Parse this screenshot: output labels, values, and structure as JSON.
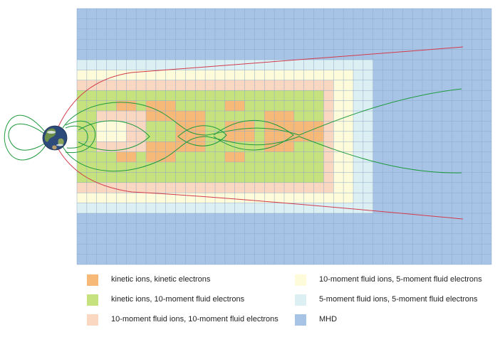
{
  "diagram": {
    "grid_cols": 42,
    "grid_rows": 25,
    "zones": {
      "kinetic": "#f7b978",
      "kinetic_10m": "#c6e27e",
      "ten_ten": "#fad7c0",
      "ten_five": "#fdfbd9",
      "five_five": "#dcf0f4",
      "mhd": "#a7c4e6"
    },
    "line_colors": {
      "magnetopause": "#d23b4b",
      "field_lines": "#1f9a3e"
    }
  },
  "legend": [
    {
      "key": "kinetic",
      "label": "kinetic ions, kinetic electrons",
      "color": "#f7b978"
    },
    {
      "key": "kinetic_10m",
      "label": "kinetic ions, 10-moment fluid electrons",
      "color": "#c6e27e"
    },
    {
      "key": "ten_ten",
      "label": "10-moment fluid ions, 10-moment fluid electrons",
      "color": "#fad7c0"
    },
    {
      "key": "ten_five",
      "label": "10-moment fluid ions, 5-moment fluid electrons",
      "color": "#fdfbd9"
    },
    {
      "key": "five_five",
      "label": "5-moment fluid ions, 5-moment fluid electrons",
      "color": "#dcf0f4"
    },
    {
      "key": "mhd",
      "label": "MHD",
      "color": "#a7c4e6"
    }
  ]
}
